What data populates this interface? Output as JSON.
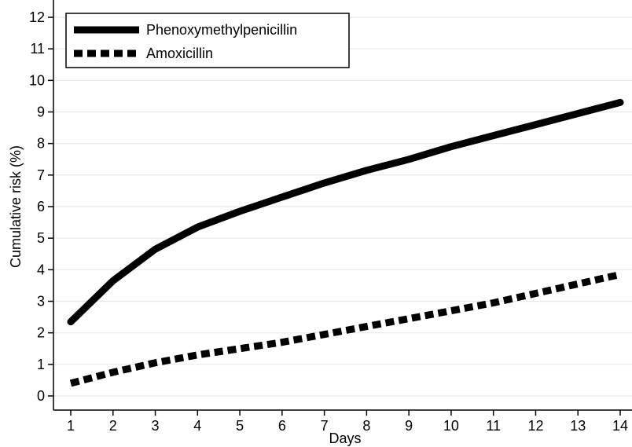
{
  "chart_data": {
    "type": "line",
    "title": "",
    "xlabel": "Days",
    "ylabel": "Cumulative risk (%)",
    "x": [
      1,
      2,
      3,
      4,
      5,
      6,
      7,
      8,
      9,
      10,
      11,
      12,
      13,
      14
    ],
    "xlim": [
      1,
      14
    ],
    "ylim": [
      0,
      12
    ],
    "xticks": [
      1,
      2,
      3,
      4,
      5,
      6,
      7,
      8,
      9,
      10,
      11,
      12,
      13,
      14
    ],
    "yticks": [
      0,
      1,
      2,
      3,
      4,
      5,
      6,
      7,
      8,
      9,
      10,
      11,
      12
    ],
    "grid": "horizontal",
    "legend": "top-left",
    "series": [
      {
        "name": "Phenoxymethylpenicillin",
        "style": "solid",
        "color": "#000000",
        "values": [
          2.35,
          3.65,
          4.65,
          5.35,
          5.85,
          6.3,
          6.75,
          7.15,
          7.5,
          7.9,
          8.25,
          8.6,
          8.95,
          9.3
        ]
      },
      {
        "name": "Amoxicillin",
        "style": "dashed",
        "color": "#000000",
        "values": [
          0.4,
          0.75,
          1.05,
          1.3,
          1.5,
          1.7,
          1.95,
          2.2,
          2.45,
          2.7,
          2.95,
          3.25,
          3.55,
          3.85
        ]
      }
    ]
  }
}
